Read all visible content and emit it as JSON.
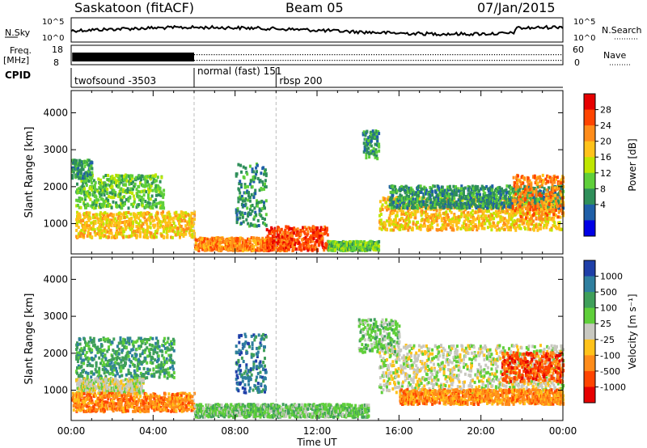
{
  "header": {
    "title": "Saskatoon (fitACF)",
    "beam": "Beam 05",
    "date": "07/Jan/2015"
  },
  "panels": {
    "noise": {
      "left_label": "N.Sky",
      "right_label": "N.Search",
      "left_ticks": [
        "10^5",
        "10^0"
      ],
      "right_ticks": [
        "10^5",
        "10^0"
      ]
    },
    "freq": {
      "left_label_1": "Freq.",
      "left_label_2": "[MHz]",
      "left_ticks": [
        "18",
        "8"
      ],
      "right_label": "Nave",
      "right_ticks": [
        "60",
        "0"
      ]
    },
    "cpid": {
      "label": "CPID",
      "segments": [
        {
          "start_hour": 0,
          "end_hour": 6,
          "text": "twofsound -3503"
        },
        {
          "start_hour": 6,
          "end_hour": 10,
          "text": "normal (fast) 151"
        },
        {
          "start_hour": 10,
          "end_hour": 24,
          "text": "rbsp 200"
        }
      ]
    }
  },
  "chart_data": [
    {
      "type": "heatmap",
      "name": "power",
      "ylabel": "Slant Range [km]",
      "xlabel": "",
      "xlim": [
        0,
        24
      ],
      "ylim": [
        180,
        4600
      ],
      "yticks": [
        "1000",
        "2000",
        "3000",
        "4000"
      ],
      "colorbar": {
        "label": "Power [dB]",
        "ticks": [
          "28",
          "24",
          "20",
          "16",
          "12",
          "8",
          "4"
        ],
        "colors": [
          "#e60000",
          "#ff4400",
          "#ff8c1a",
          "#ffc21a",
          "#bfe600",
          "#5fcf3a",
          "#2f8f5a",
          "#1f5fa8",
          "#0000e6"
        ],
        "range": [
          0,
          32
        ]
      },
      "bands": [
        {
          "t0": 0.2,
          "t1": 6.0,
          "r0": 600,
          "r1": 1300,
          "level": 22
        },
        {
          "t0": 0.2,
          "t1": 4.5,
          "r0": 1400,
          "r1": 2300,
          "level": 14
        },
        {
          "t0": 0.0,
          "t1": 1.0,
          "r0": 2200,
          "r1": 2700,
          "level": 9
        },
        {
          "t0": 6.0,
          "t1": 10.5,
          "r0": 250,
          "r1": 600,
          "level": 26
        },
        {
          "t0": 9.5,
          "t1": 12.5,
          "r0": 250,
          "r1": 900,
          "level": 27
        },
        {
          "t0": 12.5,
          "t1": 15.0,
          "r0": 250,
          "r1": 500,
          "level": 12
        },
        {
          "t0": 14.2,
          "t1": 15.0,
          "r0": 2700,
          "r1": 3500,
          "level": 7
        },
        {
          "t0": 15.0,
          "t1": 24.0,
          "r0": 800,
          "r1": 1700,
          "level": 20
        },
        {
          "t0": 15.5,
          "t1": 24.0,
          "r0": 1400,
          "r1": 2000,
          "level": 8
        },
        {
          "t0": 21.5,
          "t1": 24.0,
          "r0": 1100,
          "r1": 2300,
          "level": 24
        },
        {
          "t0": 8.0,
          "t1": 9.5,
          "r0": 900,
          "r1": 2600,
          "level": 10
        }
      ]
    },
    {
      "type": "heatmap",
      "name": "velocity",
      "ylabel": "Slant Range [km]",
      "xlabel": "Time UT",
      "xlim": [
        0,
        24
      ],
      "ylim": [
        180,
        4600
      ],
      "yticks": [
        "1000",
        "2000",
        "3000",
        "4000"
      ],
      "xticks": [
        "00:00",
        "04:00",
        "08:00",
        "12:00",
        "16:00",
        "20:00",
        "00:00"
      ],
      "colorbar": {
        "label": "Velocity [m s⁻¹]",
        "ticks": [
          "1000",
          "500",
          "100",
          "25",
          "-25",
          "-100",
          "-500",
          "-1000"
        ],
        "colors": [
          "#1f3fa8",
          "#2f7f9f",
          "#3f9f5a",
          "#5fcf3a",
          "#c8c8c0",
          "#ffc21a",
          "#ff8c1a",
          "#ff4400",
          "#e60000"
        ]
      },
      "bands": [
        {
          "t0": 0.2,
          "t1": 5.0,
          "r0": 1300,
          "r1": 2400,
          "level": 2
        },
        {
          "t0": 0.2,
          "t1": 3.5,
          "r0": 900,
          "r1": 1300,
          "level": 4
        },
        {
          "t0": 0.0,
          "t1": 6.0,
          "r0": 400,
          "r1": 900,
          "level": 6
        },
        {
          "t0": 6.0,
          "t1": 14.5,
          "r0": 250,
          "r1": 600,
          "level": 3
        },
        {
          "t0": 8.0,
          "t1": 9.5,
          "r0": 900,
          "r1": 2500,
          "level": 1
        },
        {
          "t0": 15.0,
          "t1": 24.0,
          "r0": 900,
          "r1": 2200,
          "level": 4
        },
        {
          "t0": 16.0,
          "t1": 24.0,
          "r0": 600,
          "r1": 1000,
          "level": 6
        },
        {
          "t0": 21.0,
          "t1": 24.0,
          "r0": 1200,
          "r1": 2000,
          "level": 7
        },
        {
          "t0": 14.0,
          "t1": 16.0,
          "r0": 2000,
          "r1": 2900,
          "level": 3
        }
      ]
    }
  ]
}
